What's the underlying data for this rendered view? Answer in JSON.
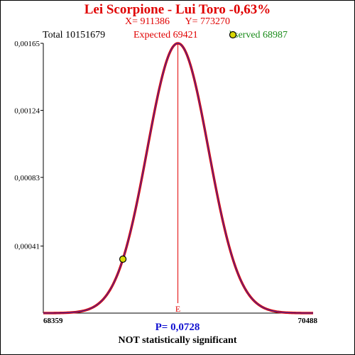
{
  "header": {
    "title": "Lei Scorpione - Lui Toro  -0,63%",
    "x_text": "X= 911386",
    "y_text": "Y= 773270",
    "total_text": "Total  10151679",
    "expected_text": "Expected  69421",
    "observed_text": "bserved  68987"
  },
  "footer": {
    "p_text": "P= 0,0728",
    "verdict_text": "NOT statistically significant"
  },
  "colors": {
    "curve": "#e00000",
    "curve_inner": "#3030b0",
    "mean_line": "#e00000",
    "marker_fill": "#d8d800",
    "title": "#e00000",
    "observed": "#1a8c1a",
    "p_value": "#1010d0"
  },
  "chart_data": {
    "type": "line",
    "title": "Lei Scorpione - Lui Toro  -0,63%",
    "xlabel": "",
    "ylabel": "",
    "xlim": [
      68359,
      70488
    ],
    "ylim": [
      0,
      0.00165
    ],
    "x_tick_labels": [
      "68359",
      "70488"
    ],
    "y_ticks": [
      0.00041,
      0.00083,
      0.00124,
      0.00165
    ],
    "y_tick_labels": [
      "0,00041",
      "0,00083",
      "0,00124",
      "0,00165"
    ],
    "distribution": {
      "mean": 69421,
      "sd": 241.8,
      "peak": 0.00165
    },
    "expected": 69421,
    "observed": 68987,
    "observed_density": 0.00033,
    "mean_marker_label": "E",
    "grid": false
  }
}
